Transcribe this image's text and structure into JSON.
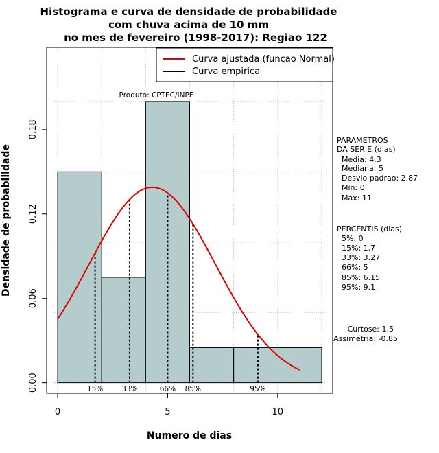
{
  "title_lines": [
    "Histograma e curva de densidade de probabilidade",
    "com chuva acima de 10 mm",
    "no mes de fevereiro (1998-2017): Regiao 122"
  ],
  "product": "Produto: CPTEC/INPE",
  "legend": {
    "fitted": "Curva ajustada (funcao Normal)",
    "empirical": "Curva empirica"
  },
  "params": {
    "header": [
      "PARAMETROS",
      "DA SERIE (dias)"
    ],
    "lines": [
      "Media: 4.3",
      "Mediana: 5",
      "Desvio padrao: 2.87",
      "Min: 0",
      "Max: 11"
    ]
  },
  "percentiles": {
    "header": "PERCENTIS (dias)",
    "lines": [
      "5%: 0",
      "15%: 1.7",
      "33%: 3.27",
      "66%: 5",
      "85%: 6.15",
      "95%: 9.1"
    ]
  },
  "moments": {
    "kurtosis": "Curtose: 1.5",
    "skewness": "Assimetria: -0.85"
  },
  "colors": {
    "bar_fill": "#b4cccc",
    "fitted_curve": "#e00000",
    "grid": "#c0c0c0"
  },
  "chart_data": {
    "type": "bar",
    "title": "Histograma e curva de densidade de probabilidade com chuva acima de 10 mm no mes de fevereiro (1998-2017): Regiao 122",
    "xlabel": "Numero de dias",
    "ylabel": "Densidade de probabilidade",
    "xlim": [
      -0.5,
      12.5
    ],
    "ylim": [
      -0.0075,
      0.2385
    ],
    "x_ticks": [
      0,
      5,
      10
    ],
    "y_ticks": [
      0.0,
      0.06,
      0.12,
      0.18
    ],
    "y_tick_labels": [
      "0.00",
      "0.06",
      "0.12",
      "0.18"
    ],
    "grid": true,
    "legend_position": "top-right",
    "bins": [
      {
        "from": 0,
        "to": 2,
        "density": 0.15
      },
      {
        "from": 2,
        "to": 4,
        "density": 0.075
      },
      {
        "from": 4,
        "to": 6,
        "density": 0.2
      },
      {
        "from": 6,
        "to": 8,
        "density": 0.025
      },
      {
        "from": 8,
        "to": 12,
        "density": 0.025
      }
    ],
    "fitted_normal": {
      "mean": 4.3,
      "sd": 2.87,
      "x_from": 0,
      "x_to": 11
    },
    "percentile_markers": [
      {
        "label": "15%",
        "x": 1.7
      },
      {
        "label": "33%",
        "x": 3.27
      },
      {
        "label": "66%",
        "x": 5
      },
      {
        "label": "85%",
        "x": 6.15
      },
      {
        "label": "95%",
        "x": 9.1
      }
    ]
  }
}
